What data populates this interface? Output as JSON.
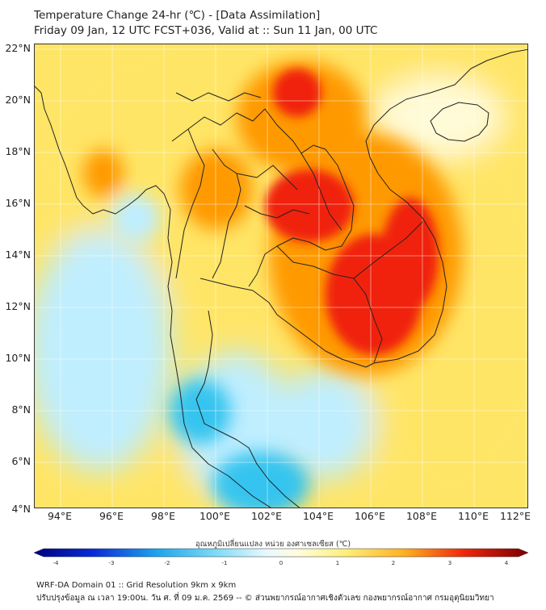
{
  "header": {
    "title_line1": "Temperature Change 24-hr (℃) - [Data Assimilation]",
    "title_line2": "Friday 09 Jan, 12 UTC FCST+036, Valid at :: Sun 11 Jan, 00 UTC"
  },
  "map": {
    "lat_labels": [
      "22°N",
      "20°N",
      "18°N",
      "16°N",
      "14°N",
      "12°N",
      "10°N",
      "8°N",
      "6°N",
      "4°N"
    ],
    "lon_labels": [
      "94°E",
      "96°E",
      "98°E",
      "100°E",
      "102°E",
      "104°E",
      "106°E",
      "108°E",
      "110°E",
      "112°E"
    ],
    "colors": {
      "cold": "#35c4ef",
      "cool": "#bfeeff",
      "neutral": "#fffbd8",
      "warm": "#ffe566",
      "hot": "#ff9900",
      "very_hot": "#f02410",
      "border": "#222222"
    }
  },
  "colorbar": {
    "title": "อุณหภูมิเปลี่ยนแปลง หน่วย องศาเซลเซียส (℃)",
    "ticks": [
      "-4",
      "-3",
      "-2",
      "-1",
      "0",
      "1",
      "2",
      "3",
      "4"
    ],
    "range": [
      -4,
      4
    ]
  },
  "footer": {
    "line1": "WRF-DA Domain 01 :: Grid Resolution 9km x 9km",
    "line2": "ปรับปรุงข้อมูล ณ เวลา 19:00น. วัน ศ. ที่ 09 ม.ค. 2569 -- © ส่วนพยากรณ์อากาศเชิงตัวเลข กองพยากรณ์อากาศ กรมอุตุนิยมวิทยา"
  }
}
